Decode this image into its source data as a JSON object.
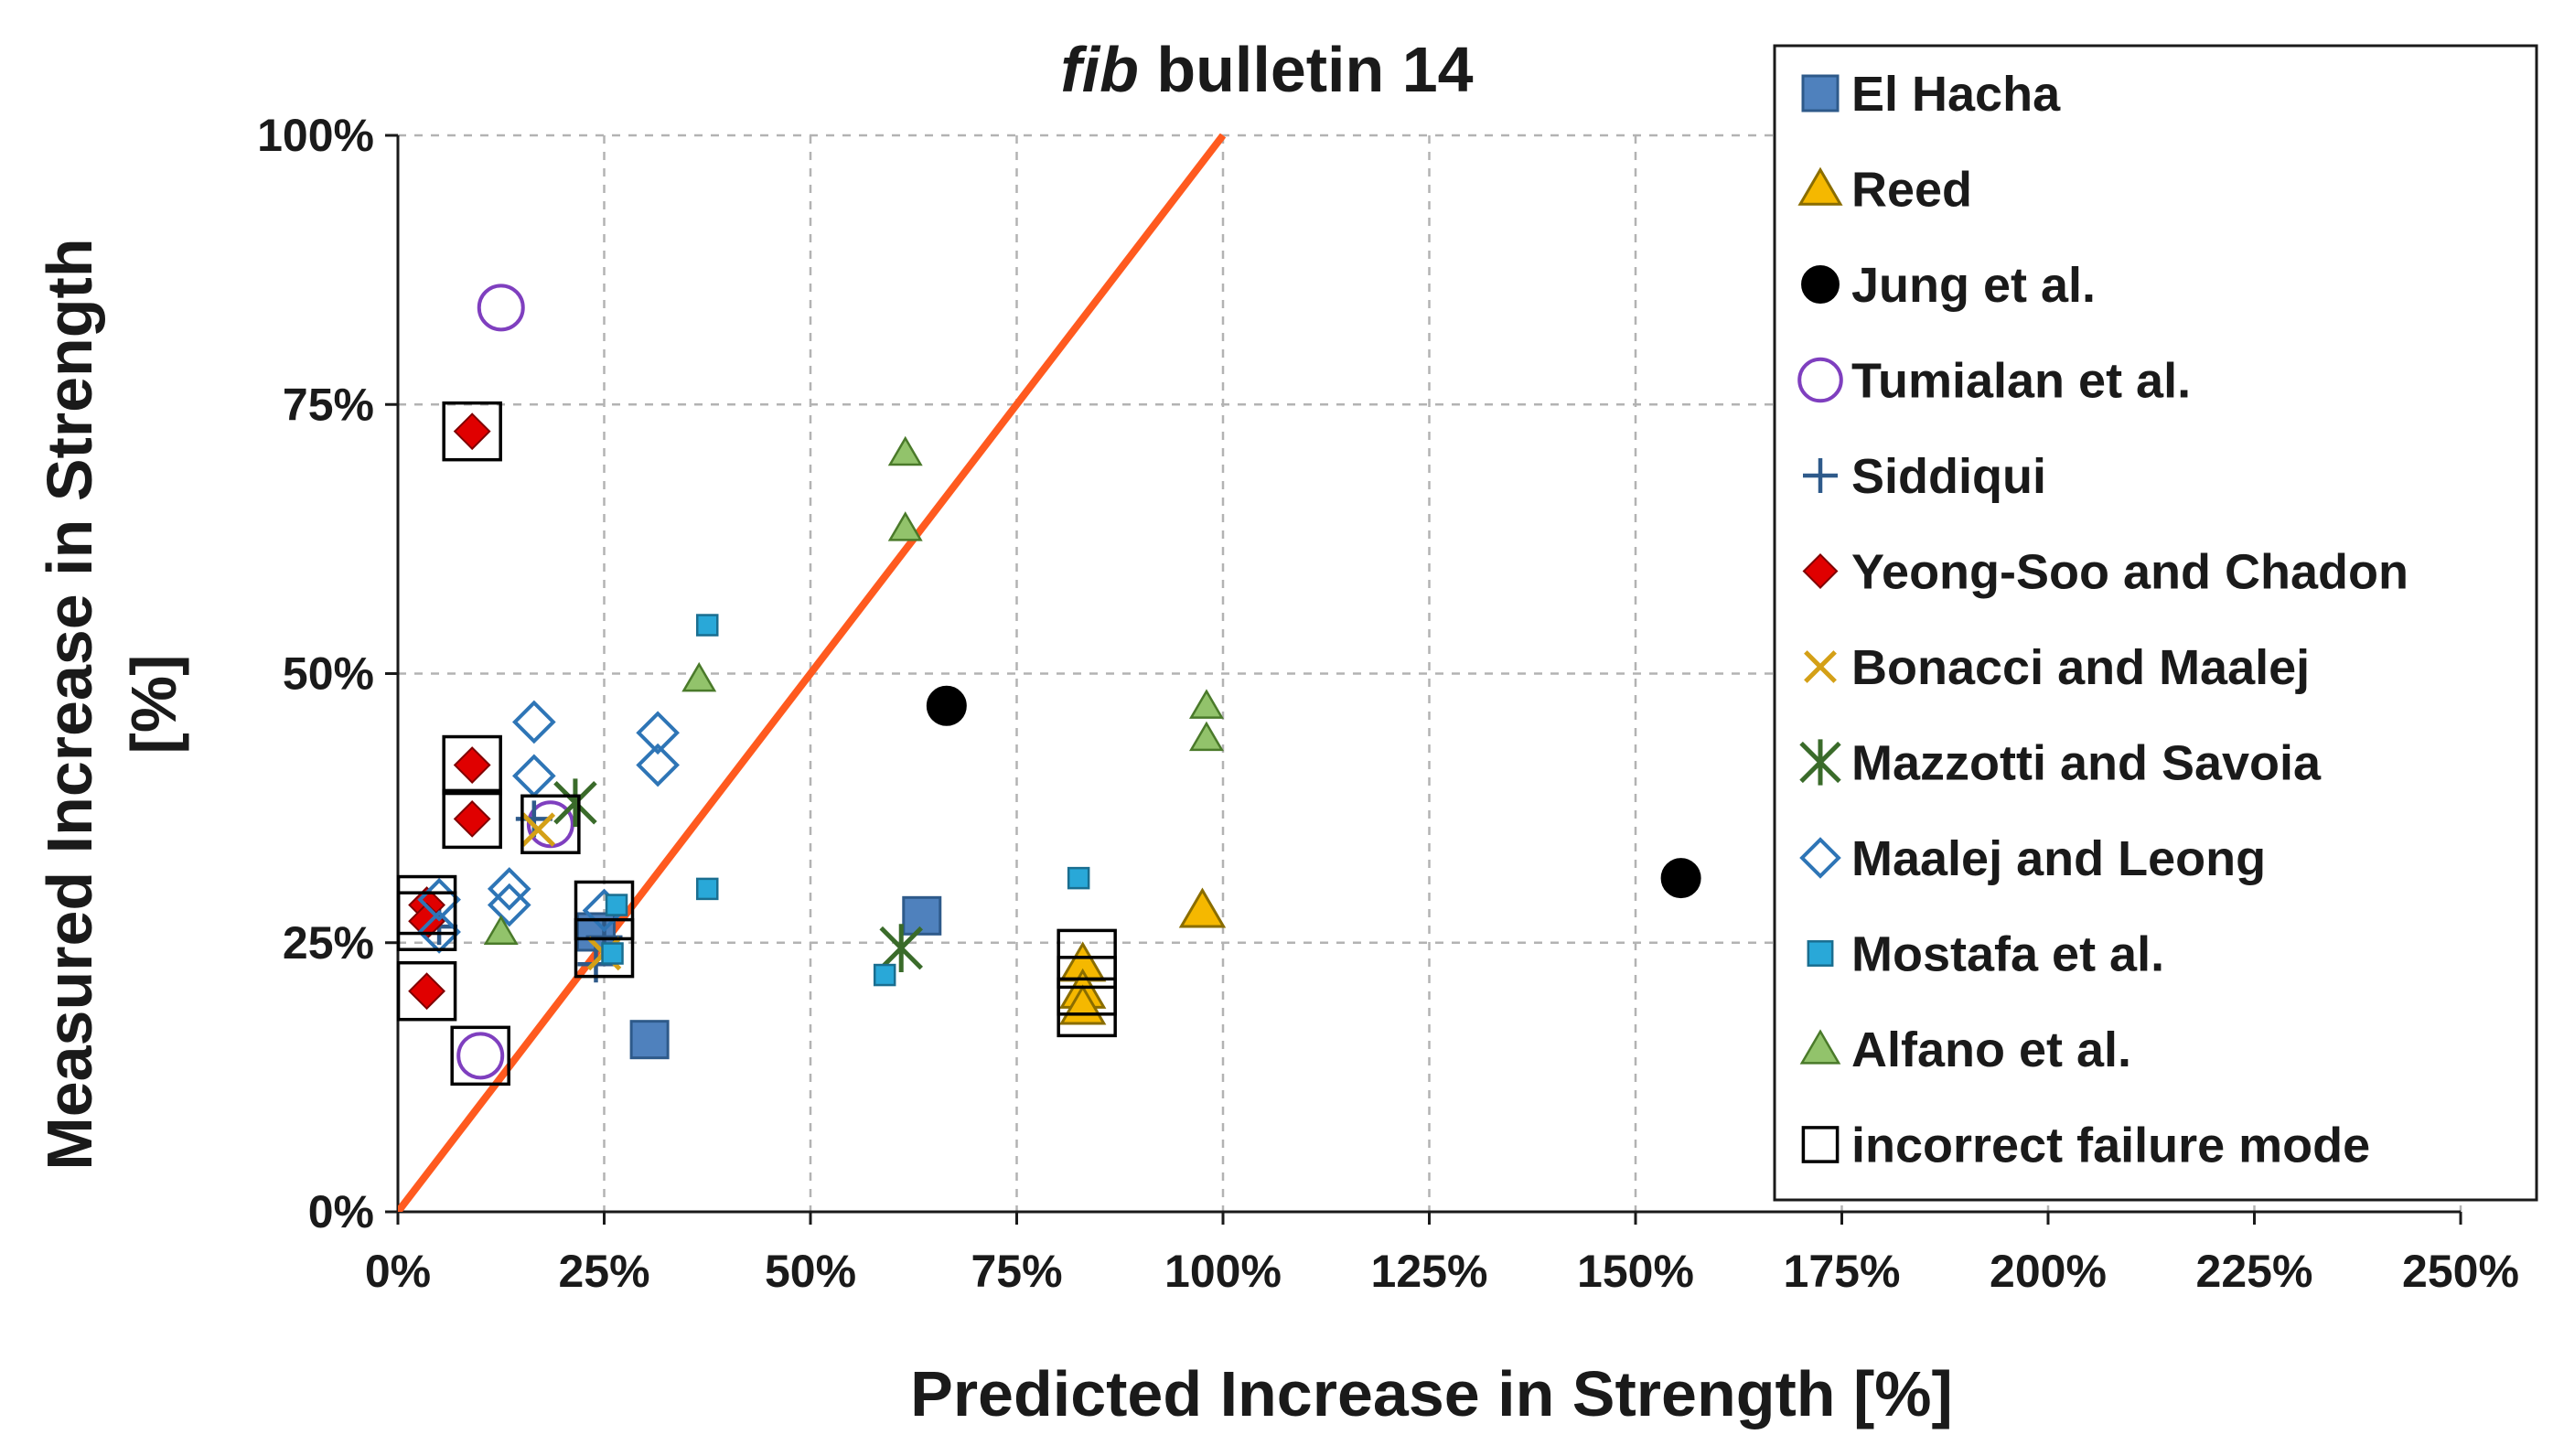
{
  "chart_data": {
    "type": "scatter",
    "title_italic": "fib",
    "title_rest": " bulletin 14",
    "xlabel": "Predicted Increase in Strength [%]",
    "ylabel_line1": "Measured Increase in Strength",
    "ylabel_line2": "[%]",
    "xlim": [
      0,
      250
    ],
    "ylim": [
      0,
      100
    ],
    "x_ticks": [
      0,
      25,
      50,
      75,
      100,
      125,
      150,
      175,
      200,
      225,
      250
    ],
    "x_tick_labels": [
      "0%",
      "25%",
      "50%",
      "75%",
      "100%",
      "125%",
      "150%",
      "175%",
      "200%",
      "225%",
      "250%"
    ],
    "y_ticks": [
      0,
      25,
      50,
      75,
      100
    ],
    "y_tick_labels": [
      "0%",
      "25%",
      "50%",
      "75%",
      "100%"
    ],
    "grid": true,
    "legend_position": "right",
    "reference_line": {
      "from": [
        0,
        0
      ],
      "to": [
        100,
        100
      ],
      "color": "#ff5a1f"
    },
    "series": [
      {
        "name": "El Hacha",
        "marker": "square",
        "color": "#4f81bd",
        "stroke": "#2e5a8a",
        "points": [
          [
            24,
            26
          ],
          [
            30.5,
            16
          ],
          [
            63.5,
            27.5
          ]
        ]
      },
      {
        "name": "Reed",
        "marker": "triangle",
        "color": "#f5b800",
        "stroke": "#8a6d00",
        "points": [
          [
            97.5,
            28
          ],
          [
            83,
            23
          ],
          [
            83,
            20.5
          ],
          [
            83,
            19
          ]
        ]
      },
      {
        "name": "Jung et al.",
        "marker": "circle",
        "color": "#000000",
        "stroke": "#000000",
        "points": [
          [
            66.5,
            47
          ],
          [
            155.5,
            31
          ]
        ]
      },
      {
        "name": "Tumialan et al.",
        "marker": "open-circle",
        "color": "#7f3fbf",
        "stroke": "#7f3fbf",
        "points": [
          [
            12.5,
            84
          ],
          [
            10,
            14.5
          ],
          [
            18.5,
            36
          ]
        ]
      },
      {
        "name": "Siddiqui",
        "marker": "plus",
        "color": "#2e5a8a",
        "stroke": "#2e5a8a",
        "points": [
          [
            24,
            23
          ],
          [
            25,
            25.5
          ],
          [
            5,
            26.5
          ],
          [
            16.5,
            36.5
          ]
        ]
      },
      {
        "name": "Yeong-Soo and Chadon",
        "marker": "diamond",
        "color": "#e00000",
        "stroke": "#7f0000",
        "points": [
          [
            9,
            72.5
          ],
          [
            9,
            41.5
          ],
          [
            9,
            36.5
          ],
          [
            3.5,
            20.5
          ],
          [
            3.5,
            28.5
          ],
          [
            3.5,
            27
          ]
        ]
      },
      {
        "name": "Bonacci and Maalej",
        "marker": "x",
        "color": "#d4a017",
        "stroke": "#d4a017",
        "points": [
          [
            17,
            35.5
          ],
          [
            25,
            24
          ]
        ]
      },
      {
        "name": "Mazzotti and Savoia",
        "marker": "asterisk",
        "color": "#3a6b2a",
        "stroke": "#3a6b2a",
        "points": [
          [
            21.5,
            38
          ],
          [
            61,
            24.5
          ]
        ]
      },
      {
        "name": "Maalej and Leong",
        "marker": "open-diamond",
        "color": "#2e75b6",
        "stroke": "#2e75b6",
        "points": [
          [
            16.5,
            45.5
          ],
          [
            16.5,
            40.5
          ],
          [
            31.5,
            44.5
          ],
          [
            31.5,
            41.5
          ],
          [
            13.5,
            30
          ],
          [
            13.5,
            28.5
          ],
          [
            5,
            29
          ],
          [
            5,
            26
          ],
          [
            25,
            28
          ]
        ]
      },
      {
        "name": "Mostafa et al.",
        "marker": "small-square",
        "color": "#29a8d8",
        "stroke": "#1a6e90",
        "points": [
          [
            37.5,
            54.5
          ],
          [
            37.5,
            30
          ],
          [
            59,
            22
          ],
          [
            82.5,
            31
          ],
          [
            26.5,
            28.5
          ],
          [
            26,
            24
          ]
        ]
      },
      {
        "name": "Alfano et al.",
        "marker": "small-triangle",
        "color": "#92c36b",
        "stroke": "#4a7a2a",
        "points": [
          [
            61.5,
            70.5
          ],
          [
            61.5,
            63.5
          ],
          [
            36.5,
            49.5
          ],
          [
            98,
            47
          ],
          [
            98,
            44
          ],
          [
            12.5,
            26
          ]
        ]
      },
      {
        "name": "incorrect failure mode",
        "marker": "open-square",
        "color": "none",
        "stroke": "#000000",
        "points": [
          [
            9,
            72.5
          ],
          [
            9,
            41.5
          ],
          [
            9,
            36.5
          ],
          [
            3.5,
            20.5
          ],
          [
            3.5,
            28.5
          ],
          [
            3.5,
            27
          ],
          [
            18.5,
            36
          ],
          [
            10,
            14.5
          ],
          [
            25,
            28
          ],
          [
            25,
            24.5
          ],
          [
            83.5,
            23.5
          ],
          [
            83.5,
            21
          ],
          [
            83.5,
            19
          ]
        ]
      }
    ]
  }
}
